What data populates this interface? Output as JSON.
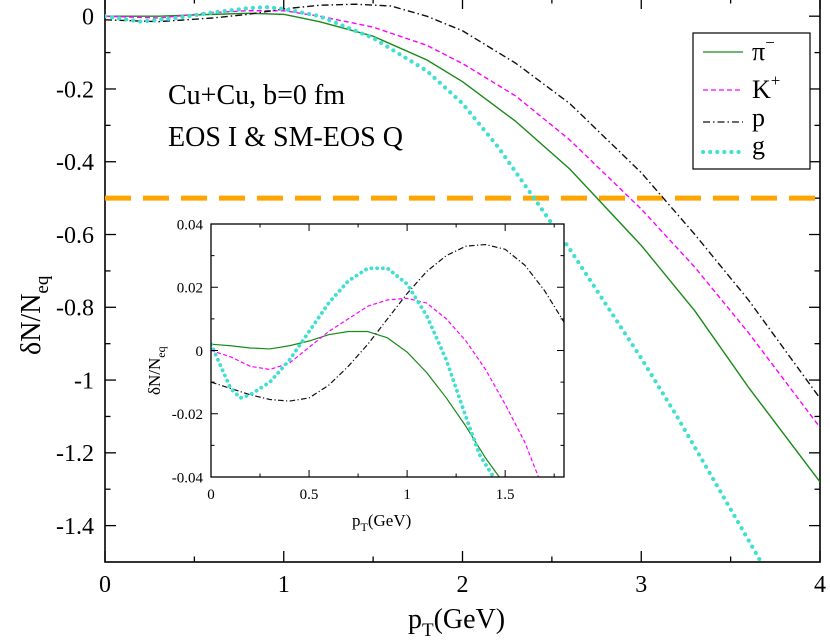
{
  "chart_data": [
    {
      "type": "line",
      "name": "main",
      "xlabel": "p",
      "xlabel_sub": "T",
      "xlabel_unit": "(GeV)",
      "ylabel": "δN/N",
      "ylabel_sub": "eq",
      "xlim": [
        0,
        4
      ],
      "ylim": [
        -1.5,
        0.05
      ],
      "xticks": [
        0,
        1,
        2,
        3,
        4
      ],
      "xtick_labels": [
        "0",
        "1",
        "2",
        "3",
        "4"
      ],
      "yticks": [
        0,
        -0.2,
        -0.4,
        -0.6,
        -0.8,
        -1,
        -1.2,
        -1.4
      ],
      "ytick_labels": [
        "0",
        "-0.2",
        "-0.4",
        "-0.6",
        "-0.8",
        "-1",
        "-1.2",
        "-1.4"
      ],
      "annotations": [
        "Cu+Cu, b=0 fm",
        "EOS I & SM-EOS Q"
      ],
      "reference_line": {
        "y": -0.5,
        "color": "#ffa500"
      },
      "legend": [
        "π",
        "K",
        "p",
        "g"
      ],
      "legend_sup": [
        "−",
        "+",
        "",
        ""
      ],
      "legend_placement": "top-right",
      "series": [
        {
          "name": "π-",
          "color": "#1a8a1a",
          "style": "solid",
          "x": [
            0,
            0.3,
            0.6,
            0.8,
            1.0,
            1.2,
            1.5,
            1.8,
            2.0,
            2.3,
            2.6,
            3.0,
            3.3,
            3.6,
            4.0
          ],
          "y": [
            0.0,
            0.0,
            0.005,
            0.008,
            0.005,
            -0.015,
            -0.055,
            -0.12,
            -0.18,
            -0.29,
            -0.42,
            -0.63,
            -0.81,
            -1.02,
            -1.28
          ]
        },
        {
          "name": "K+",
          "color": "#ff00ff",
          "style": "dashed",
          "x": [
            0,
            0.3,
            0.6,
            0.8,
            1.0,
            1.2,
            1.5,
            1.8,
            2.0,
            2.3,
            2.6,
            3.0,
            3.3,
            3.6,
            4.0
          ],
          "y": [
            0.0,
            -0.005,
            0.01,
            0.015,
            0.015,
            0.0,
            -0.03,
            -0.08,
            -0.13,
            -0.22,
            -0.34,
            -0.53,
            -0.69,
            -0.87,
            -1.13
          ]
        },
        {
          "name": "p",
          "color": "#111111",
          "style": "dashdot",
          "x": [
            0,
            0.3,
            0.6,
            0.8,
            1.0,
            1.2,
            1.4,
            1.6,
            1.8,
            2.0,
            2.3,
            2.6,
            3.0,
            3.3,
            3.6,
            4.0
          ],
          "y": [
            -0.01,
            -0.015,
            -0.005,
            0.005,
            0.02,
            0.03,
            0.033,
            0.028,
            0.0,
            -0.04,
            -0.13,
            -0.24,
            -0.43,
            -0.6,
            -0.78,
            -1.05
          ]
        },
        {
          "name": "g",
          "color": "#40e0d0",
          "style": "dotted",
          "x": [
            0,
            0.2,
            0.4,
            0.6,
            0.8,
            0.9,
            1.0,
            1.2,
            1.5,
            1.8,
            2.0,
            2.2,
            2.4,
            2.6,
            2.8,
            3.0,
            3.2,
            3.4,
            3.6,
            3.67
          ],
          "y": [
            0.0,
            -0.015,
            -0.005,
            0.01,
            0.022,
            0.025,
            0.02,
            0.0,
            -0.06,
            -0.15,
            -0.24,
            -0.36,
            -0.5,
            -0.64,
            -0.79,
            -0.94,
            -1.1,
            -1.27,
            -1.44,
            -1.5
          ]
        }
      ]
    },
    {
      "type": "line",
      "name": "inset",
      "xlabel": "p",
      "xlabel_sub": "T",
      "xlabel_unit": "(GeV)",
      "ylabel": "δN/N",
      "ylabel_sub": "eq",
      "xlim": [
        0,
        1.8
      ],
      "ylim": [
        -0.04,
        0.04
      ],
      "xticks": [
        0,
        0.5,
        1,
        1.5
      ],
      "xtick_labels": [
        "0",
        "0.5",
        "1",
        "1.5"
      ],
      "yticks": [
        0.04,
        0.02,
        0,
        -0.02,
        -0.04
      ],
      "ytick_labels": [
        "0.04",
        "0.02",
        "0",
        "-0.02",
        "-0.04"
      ],
      "series": [
        {
          "name": "π-",
          "color": "#1a8a1a",
          "style": "solid",
          "x": [
            0,
            0.1,
            0.2,
            0.3,
            0.4,
            0.5,
            0.6,
            0.7,
            0.8,
            0.9,
            1.0,
            1.1,
            1.2,
            1.3,
            1.4,
            1.47
          ],
          "y": [
            0.002,
            0.0015,
            0.0008,
            0.0005,
            0.0015,
            0.003,
            0.005,
            0.006,
            0.006,
            0.004,
            -0.0005,
            -0.007,
            -0.015,
            -0.024,
            -0.034,
            -0.04
          ]
        },
        {
          "name": "K+",
          "color": "#ff00ff",
          "style": "dashed",
          "x": [
            0,
            0.1,
            0.2,
            0.3,
            0.4,
            0.5,
            0.6,
            0.7,
            0.8,
            0.9,
            1.0,
            1.1,
            1.2,
            1.3,
            1.4,
            1.5,
            1.6,
            1.67
          ],
          "y": [
            0.0,
            -0.002,
            -0.005,
            -0.006,
            -0.004,
            0.001,
            0.006,
            0.01,
            0.014,
            0.016,
            0.0165,
            0.015,
            0.01,
            0.003,
            -0.006,
            -0.017,
            -0.029,
            -0.04
          ]
        },
        {
          "name": "p",
          "color": "#111111",
          "style": "dashdot",
          "x": [
            0,
            0.1,
            0.2,
            0.3,
            0.4,
            0.5,
            0.6,
            0.7,
            0.8,
            0.9,
            1.0,
            1.1,
            1.2,
            1.3,
            1.4,
            1.5,
            1.6,
            1.7,
            1.8
          ],
          "y": [
            -0.01,
            -0.012,
            -0.014,
            -0.0155,
            -0.016,
            -0.015,
            -0.011,
            -0.005,
            0.002,
            0.01,
            0.018,
            0.025,
            0.03,
            0.033,
            0.0335,
            0.032,
            0.027,
            0.019,
            0.009
          ]
        },
        {
          "name": "g",
          "color": "#40e0d0",
          "style": "dotted",
          "x": [
            0,
            0.05,
            0.1,
            0.15,
            0.2,
            0.3,
            0.4,
            0.5,
            0.6,
            0.7,
            0.8,
            0.9,
            1.0,
            1.1,
            1.2,
            1.3,
            1.37,
            1.44
          ],
          "y": [
            0.002,
            -0.005,
            -0.012,
            -0.015,
            -0.014,
            -0.01,
            -0.003,
            0.006,
            0.015,
            0.022,
            0.026,
            0.026,
            0.021,
            0.011,
            -0.003,
            -0.021,
            -0.033,
            -0.04
          ]
        }
      ]
    }
  ]
}
